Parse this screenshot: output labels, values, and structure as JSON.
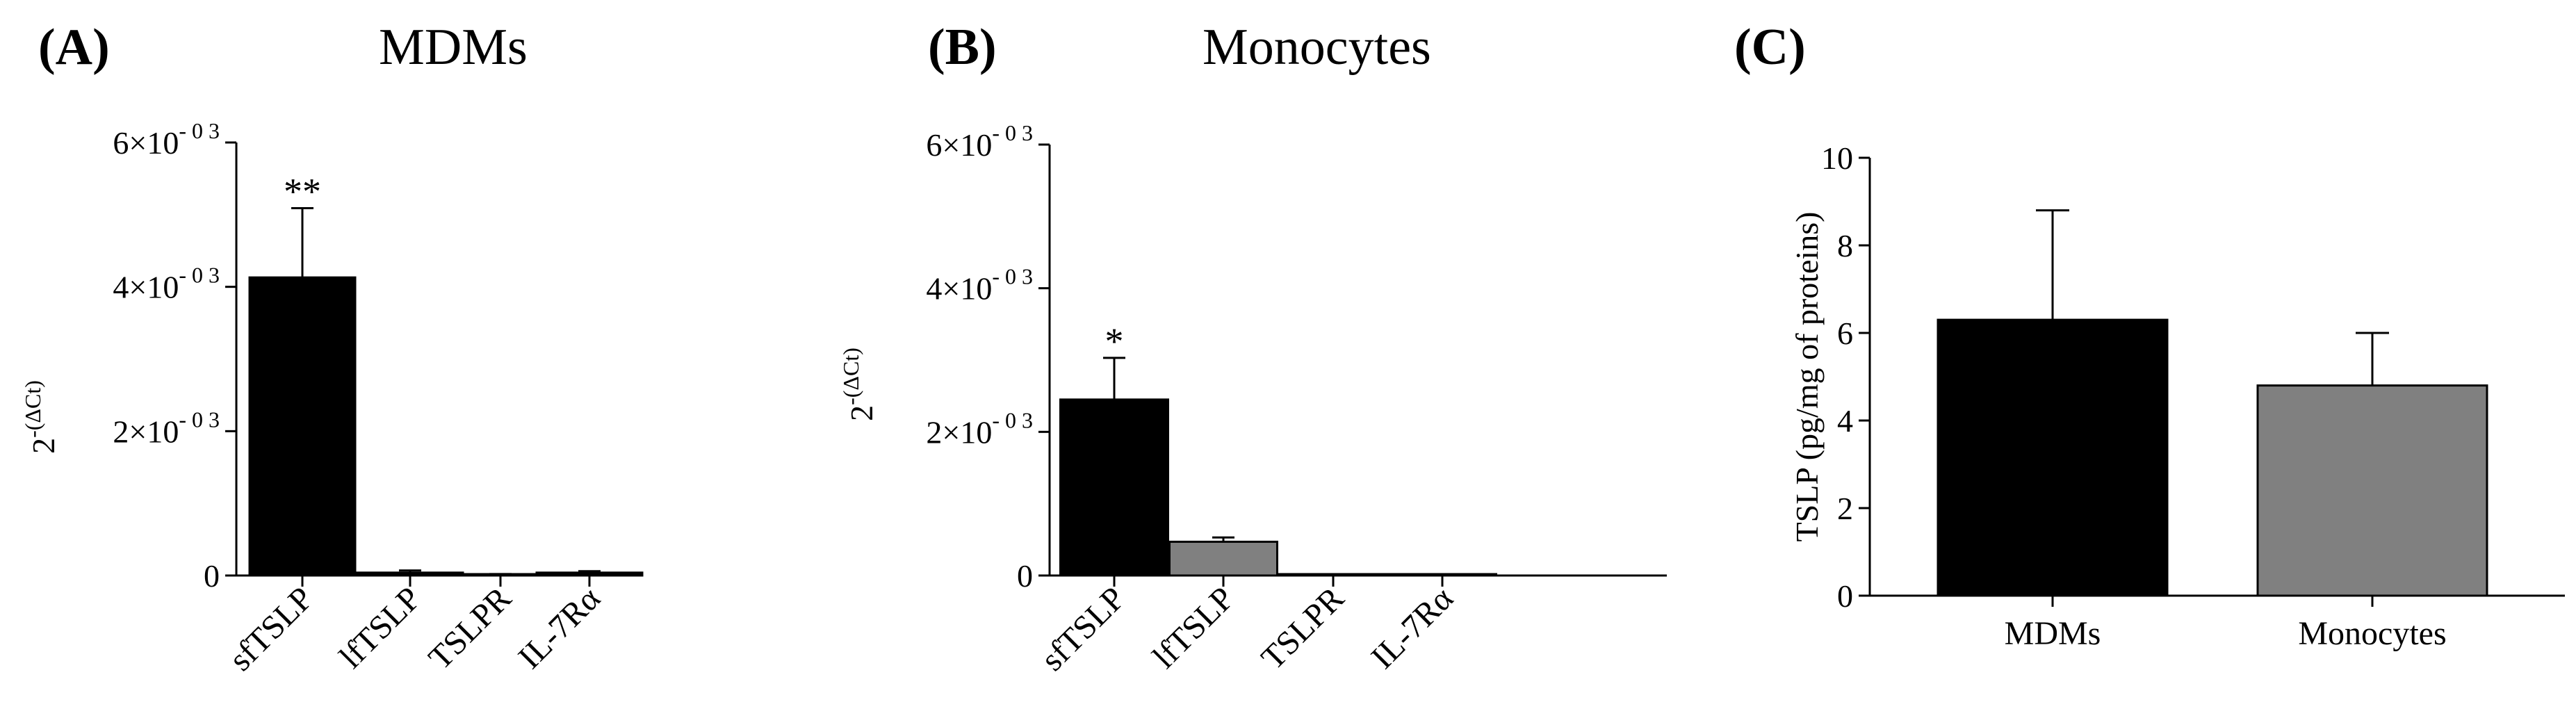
{
  "figure": {
    "panels": [
      {
        "letter": "(A)",
        "title": "MDMs"
      },
      {
        "letter": "(B)",
        "title": "Monocytes"
      },
      {
        "letter": "(C)",
        "title": ""
      }
    ]
  },
  "colors": {
    "black": "#000000",
    "gray": "#808080"
  },
  "chart_data": [
    {
      "type": "bar",
      "title": "MDMs",
      "ylabel": "2^-(ΔCt)",
      "ylabel_base": "2",
      "ylabel_exp": "-(ΔCt)",
      "ylim": [
        0,
        0.006
      ],
      "yticks": [
        {
          "value": 0,
          "mantissa": "0",
          "exp": ""
        },
        {
          "value": 0.002,
          "mantissa": "2×10",
          "exp": "- 0 3"
        },
        {
          "value": 0.004,
          "mantissa": "4×10",
          "exp": "- 0 3"
        },
        {
          "value": 0.006,
          "mantissa": "6×10",
          "exp": "- 0 3"
        }
      ],
      "categories": [
        "sfTSLP",
        "lfTSLP",
        "TSLPR",
        "IL-7Rα"
      ],
      "values": [
        0.00413,
        4e-05,
        1e-05,
        4e-05
      ],
      "errors": [
        0.00096,
        3e-05,
        1e-05,
        2e-05
      ],
      "bar_colors": [
        "#000000",
        "#000000",
        "#000000",
        "#000000"
      ],
      "annotations": [
        "**",
        "",
        "",
        ""
      ],
      "grid": false
    },
    {
      "type": "bar",
      "title": "Monocytes",
      "ylabel": "2^-(ΔCt)",
      "ylabel_base": "2",
      "ylabel_exp": "-(ΔCt)",
      "ylim": [
        0,
        0.006
      ],
      "yticks": [
        {
          "value": 0,
          "mantissa": "0",
          "exp": ""
        },
        {
          "value": 0.002,
          "mantissa": "2×10",
          "exp": "- 0 3"
        },
        {
          "value": 0.004,
          "mantissa": "4×10",
          "exp": "- 0 3"
        },
        {
          "value": 0.006,
          "mantissa": "6×10",
          "exp": "- 0 3"
        }
      ],
      "categories": [
        "sfTSLP",
        "lfTSLP",
        "TSLPR",
        "IL-7Rα"
      ],
      "values": [
        0.00245,
        0.00047,
        1e-05,
        5e-06
      ],
      "errors": [
        0.00058,
        6e-05,
        5e-06,
        3e-06
      ],
      "bar_colors": [
        "#000000",
        "#808080",
        "#000000",
        "#000000"
      ],
      "annotations": [
        "*",
        "",
        "",
        ""
      ],
      "grid": false
    },
    {
      "type": "bar",
      "title": "",
      "ylabel": "TSLP (pg/mg of proteins)",
      "ylim": [
        0,
        10
      ],
      "yticks": [
        {
          "value": 0,
          "mantissa": "0",
          "exp": ""
        },
        {
          "value": 2,
          "mantissa": "2",
          "exp": ""
        },
        {
          "value": 4,
          "mantissa": "4",
          "exp": ""
        },
        {
          "value": 6,
          "mantissa": "6",
          "exp": ""
        },
        {
          "value": 8,
          "mantissa": "8",
          "exp": ""
        },
        {
          "value": 10,
          "mantissa": "10",
          "exp": ""
        }
      ],
      "categories": [
        "MDMs",
        "Monocytes"
      ],
      "values": [
        6.3,
        4.8
      ],
      "errors": [
        2.5,
        1.2
      ],
      "bar_colors": [
        "#000000",
        "#808080"
      ],
      "annotations": [
        "",
        ""
      ],
      "grid": false
    }
  ]
}
